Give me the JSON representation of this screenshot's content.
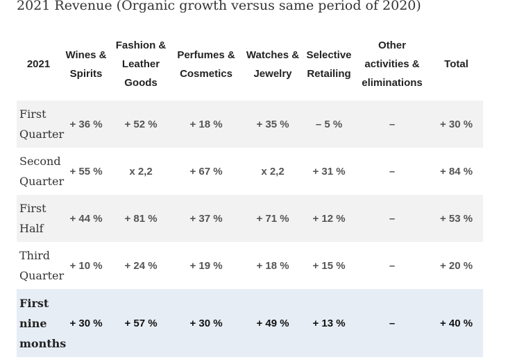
{
  "title": "2021 Revenue  (Organic growth versus same period of 2020)",
  "table": {
    "headers": [
      "2021",
      "Wines & Spirits",
      "Fashion & Leather Goods",
      "Perfumes & Cosmetics",
      "Watches & Jewelry",
      "Selective Retailing",
      "Other activities & eliminations",
      "Total"
    ],
    "rows": [
      {
        "label": "First Quarter",
        "cells": [
          "+ 36 %",
          "+ 52 %",
          "+ 18 %",
          "+ 35 %",
          "– 5 %",
          "–",
          "+ 30 %"
        ]
      },
      {
        "label": "Second Quarter",
        "cells": [
          "+ 55 %",
          "x 2,2",
          "+ 67 %",
          "x 2,2",
          "+ 31 %",
          "–",
          "+ 84 %"
        ]
      },
      {
        "label": "First Half",
        "cells": [
          "+ 44 %",
          "+ 81 %",
          "+ 37 %",
          "+ 71 %",
          "+ 12 %",
          "–",
          "+ 53 %"
        ]
      },
      {
        "label": "Third Quarter",
        "cells": [
          "+ 10 %",
          "+ 24 %",
          "+ 19 %",
          "+ 18 %",
          "+ 15 %",
          "–",
          "+ 20 %"
        ]
      },
      {
        "label": "First nine months",
        "cells": [
          "+ 30 %",
          "+ 57 %",
          "+ 30 %",
          "+ 49 %",
          "+ 13 %",
          "–",
          "+ 40 %"
        ]
      }
    ]
  }
}
